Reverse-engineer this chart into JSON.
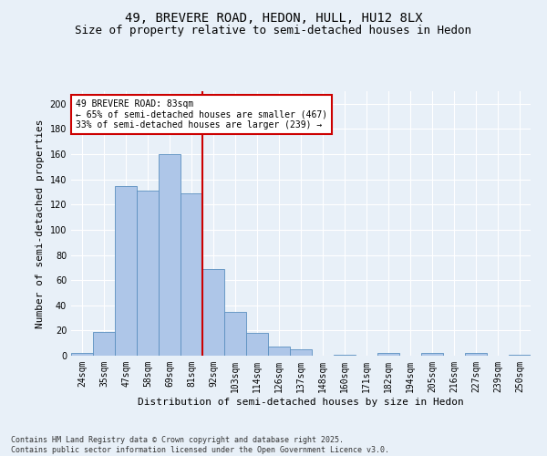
{
  "title1": "49, BREVERE ROAD, HEDON, HULL, HU12 8LX",
  "title2": "Size of property relative to semi-detached houses in Hedon",
  "xlabel": "Distribution of semi-detached houses by size in Hedon",
  "ylabel": "Number of semi-detached properties",
  "categories": [
    "24sqm",
    "35sqm",
    "47sqm",
    "58sqm",
    "69sqm",
    "81sqm",
    "92sqm",
    "103sqm",
    "114sqm",
    "126sqm",
    "137sqm",
    "148sqm",
    "160sqm",
    "171sqm",
    "182sqm",
    "194sqm",
    "205sqm",
    "216sqm",
    "227sqm",
    "239sqm",
    "250sqm"
  ],
  "values": [
    2,
    19,
    135,
    131,
    160,
    129,
    69,
    35,
    18,
    7,
    5,
    0,
    1,
    0,
    2,
    0,
    2,
    0,
    2,
    0,
    1
  ],
  "bar_color": "#aec6e8",
  "bar_edge_color": "#5a8fc0",
  "vline_x": 5.5,
  "vline_color": "#cc0000",
  "annotation_text": "49 BREVERE ROAD: 83sqm\n← 65% of semi-detached houses are smaller (467)\n33% of semi-detached houses are larger (239) →",
  "annotation_box_color": "#ffffff",
  "annotation_box_edge": "#cc0000",
  "ylim": [
    0,
    210
  ],
  "yticks": [
    0,
    20,
    40,
    60,
    80,
    100,
    120,
    140,
    160,
    180,
    200
  ],
  "footer": "Contains HM Land Registry data © Crown copyright and database right 2025.\nContains public sector information licensed under the Open Government Licence v3.0.",
  "bg_color": "#e8f0f8",
  "plot_bg_color": "#e8f0f8",
  "title_fontsize": 10,
  "subtitle_fontsize": 9,
  "tick_fontsize": 7,
  "label_fontsize": 8,
  "footer_fontsize": 6,
  "annot_fontsize": 7
}
